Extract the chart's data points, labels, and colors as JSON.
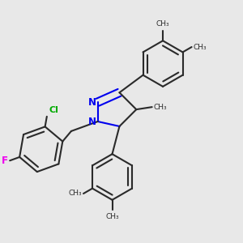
{
  "bg_color": "#e8e8e8",
  "bond_color": "#2a2a2a",
  "N_color": "#0000ee",
  "F_color": "#ee00ee",
  "Cl_color": "#00aa00",
  "line_width": 1.5,
  "dbo": 0.018,
  "figsize": [
    3.0,
    3.0
  ],
  "dpi": 100,
  "xlim": [
    0.0,
    1.0
  ],
  "ylim": [
    0.0,
    1.0
  ]
}
